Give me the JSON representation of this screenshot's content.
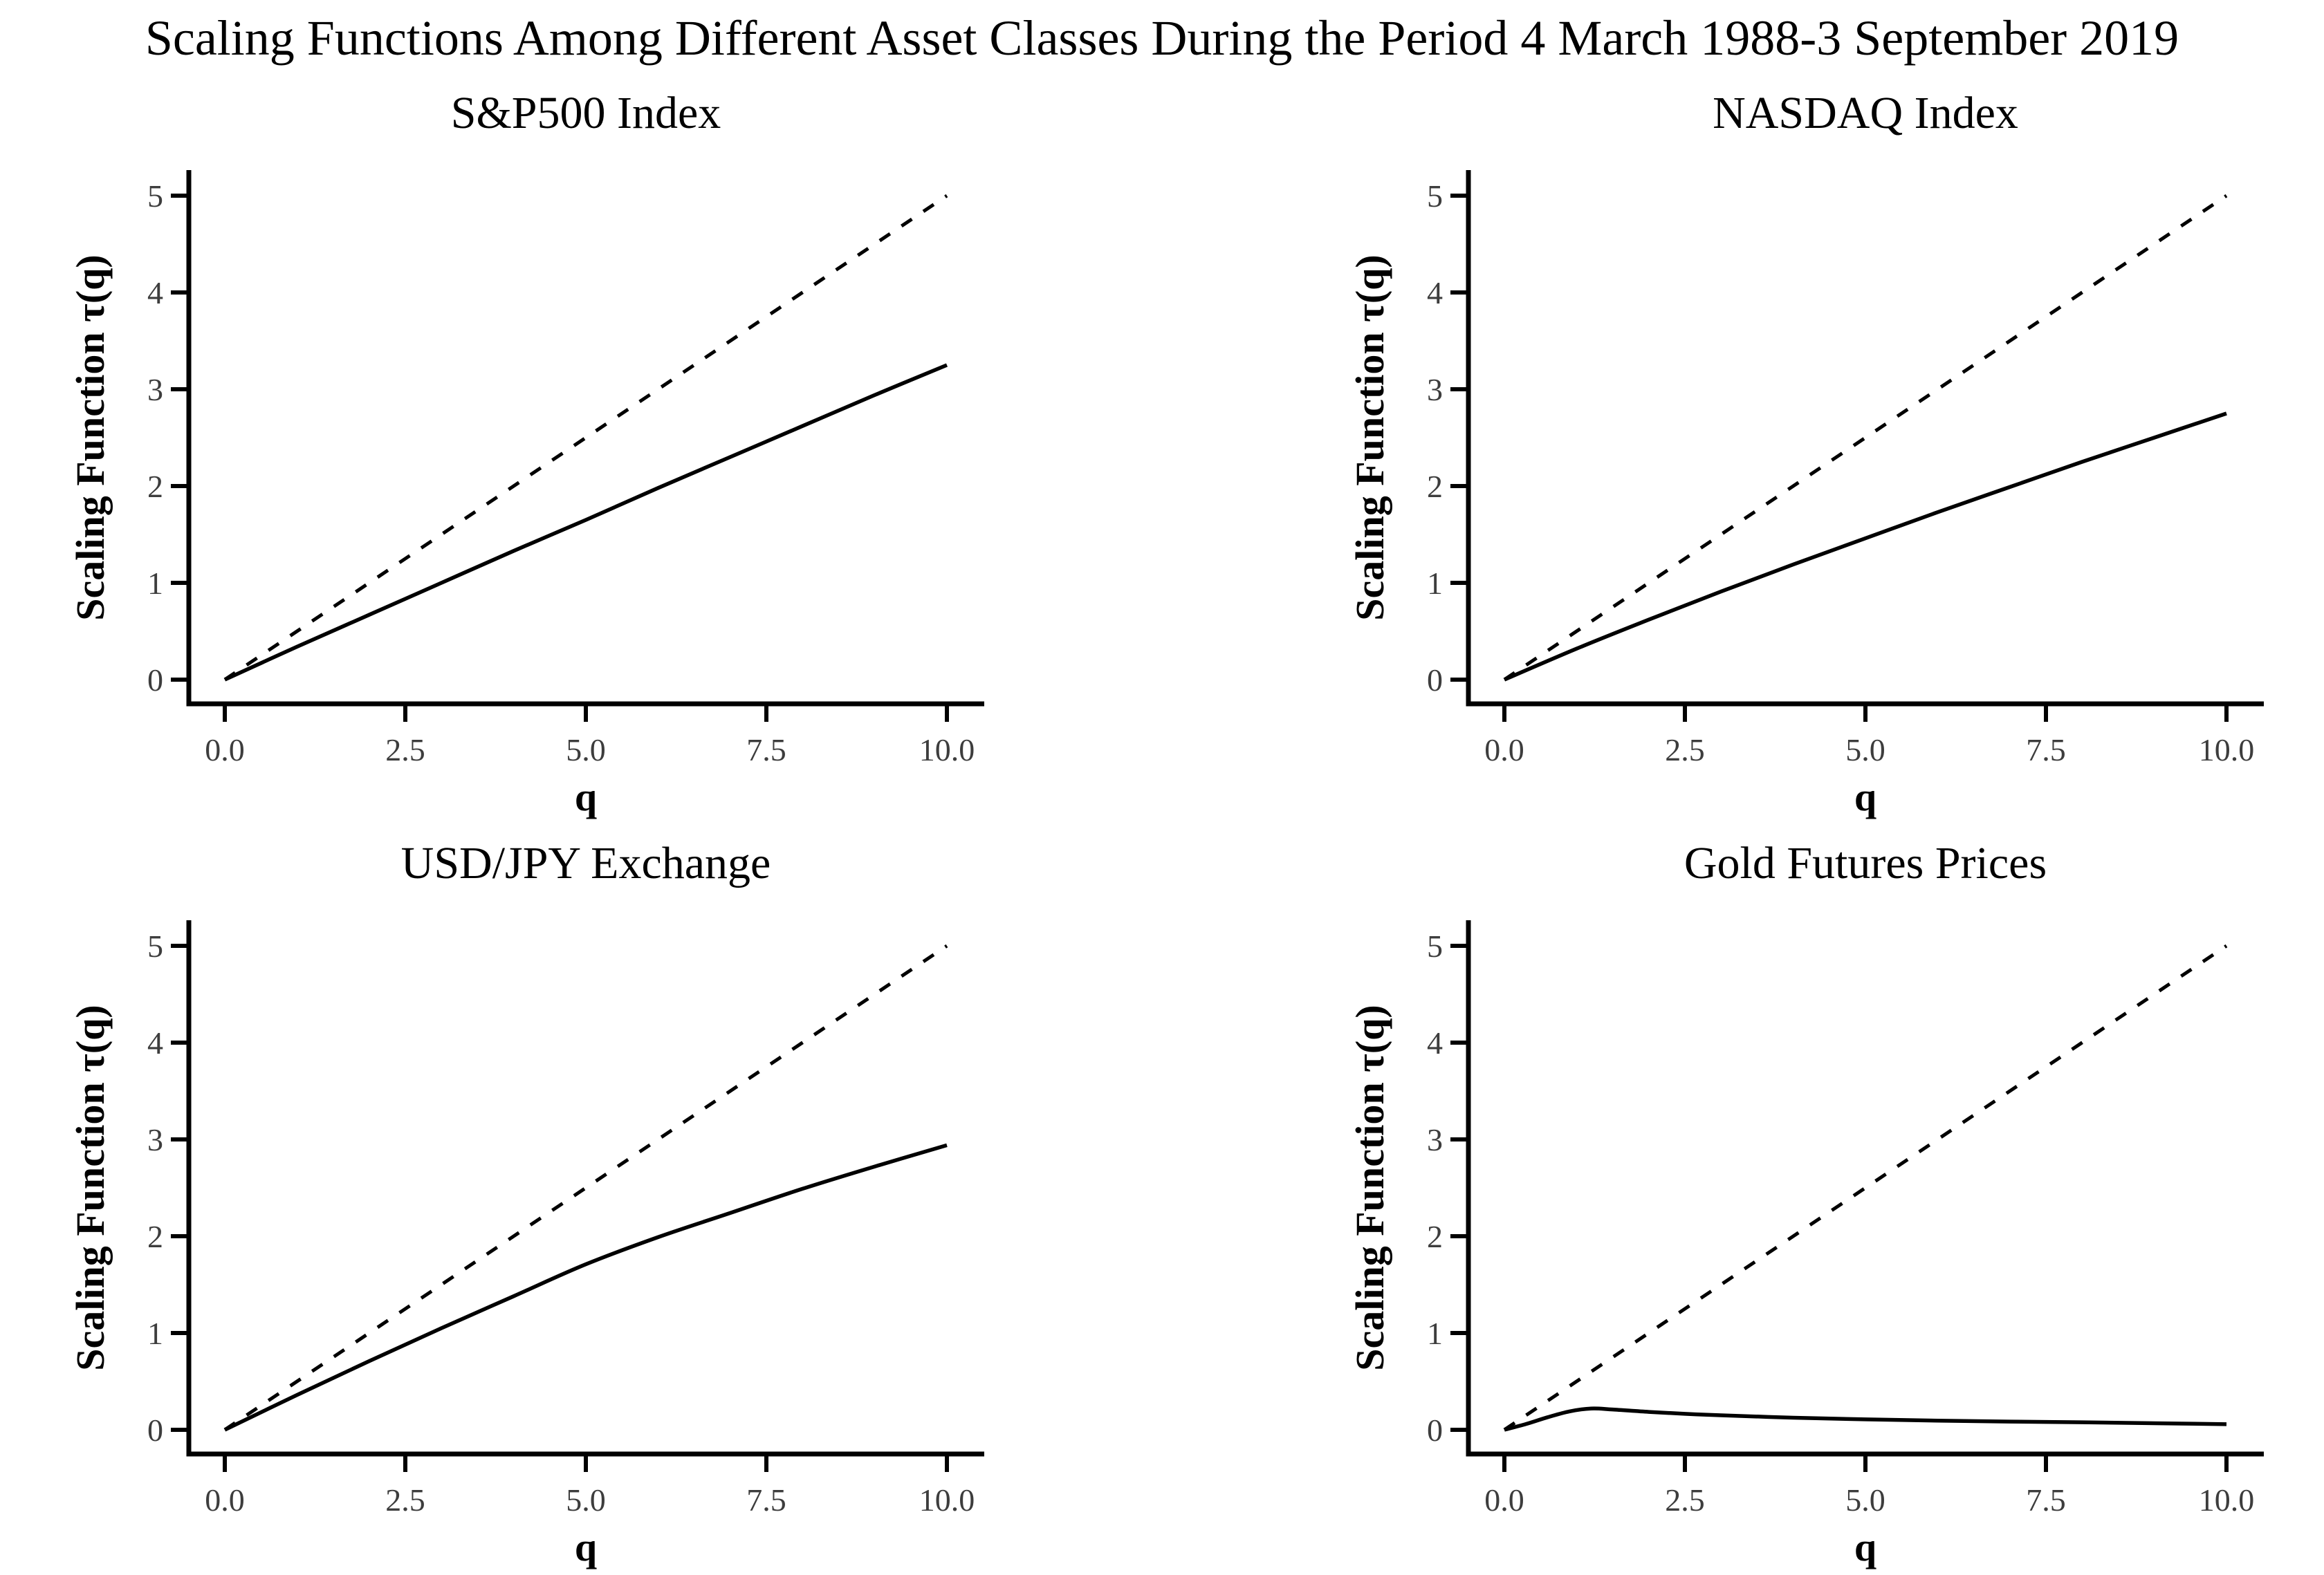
{
  "figure": {
    "title": "Scaling Functions Among Different Asset Classes During the Period 4 March 1988-3 September 2019",
    "background_color": "#ffffff",
    "line_color": "#000000",
    "tick_label_color": "#3d3d3d"
  },
  "chart_data": [
    {
      "type": "line",
      "title": "S&P500 Index",
      "xlabel": "q",
      "ylabel": "Scaling Function τ(q)",
      "xlim": [
        0,
        10
      ],
      "ylim": [
        0,
        5
      ],
      "grid": false,
      "legend": "none",
      "xtick_values": [
        0,
        2.5,
        5,
        7.5,
        10
      ],
      "xtick_labels": [
        "0.0",
        "2.5",
        "5.0",
        "7.5",
        "10.0"
      ],
      "ytick_values": [
        0,
        1,
        2,
        3,
        4,
        5
      ],
      "ytick_labels": [
        "0",
        "1",
        "2",
        "3",
        "4",
        "5"
      ],
      "series": [
        {
          "name": "dashed-reference-line",
          "style": "dashed",
          "x": [
            0,
            10
          ],
          "y": [
            0,
            5
          ]
        },
        {
          "name": "solid-scaling-function",
          "style": "solid",
          "x": [
            0,
            1,
            2,
            3,
            4,
            5,
            6,
            7,
            8,
            9,
            10
          ],
          "y": [
            0,
            0.34,
            0.67,
            1.0,
            1.33,
            1.65,
            1.98,
            2.3,
            2.62,
            2.94,
            3.25
          ]
        }
      ]
    },
    {
      "type": "line",
      "title": "NASDAQ Index",
      "xlabel": "q",
      "ylabel": "Scaling Function τ(q)",
      "xlim": [
        0,
        10
      ],
      "ylim": [
        0,
        5
      ],
      "grid": false,
      "legend": "none",
      "xtick_values": [
        0,
        2.5,
        5,
        7.5,
        10
      ],
      "xtick_labels": [
        "0.0",
        "2.5",
        "5.0",
        "7.5",
        "10.0"
      ],
      "ytick_values": [
        0,
        1,
        2,
        3,
        4,
        5
      ],
      "ytick_labels": [
        "0",
        "1",
        "2",
        "3",
        "4",
        "5"
      ],
      "series": [
        {
          "name": "dashed-reference-line",
          "style": "dashed",
          "x": [
            0,
            10
          ],
          "y": [
            0,
            5
          ]
        },
        {
          "name": "solid-scaling-function",
          "style": "solid",
          "x": [
            0,
            1,
            2,
            3,
            4,
            5,
            6,
            7,
            8,
            9,
            10
          ],
          "y": [
            0,
            0.32,
            0.62,
            0.91,
            1.19,
            1.46,
            1.73,
            1.99,
            2.25,
            2.5,
            2.75
          ]
        }
      ]
    },
    {
      "type": "line",
      "title": "USD/JPY Exchange",
      "xlabel": "q",
      "ylabel": "Scaling Function τ(q)",
      "xlim": [
        0,
        10
      ],
      "ylim": [
        0,
        5
      ],
      "grid": false,
      "legend": "none",
      "xtick_values": [
        0,
        2.5,
        5,
        7.5,
        10
      ],
      "xtick_labels": [
        "0.0",
        "2.5",
        "5.0",
        "7.5",
        "10.0"
      ],
      "ytick_values": [
        0,
        1,
        2,
        3,
        4,
        5
      ],
      "ytick_labels": [
        "0",
        "1",
        "2",
        "3",
        "4",
        "5"
      ],
      "series": [
        {
          "name": "dashed-reference-line",
          "style": "dashed",
          "x": [
            0,
            10
          ],
          "y": [
            0,
            5
          ]
        },
        {
          "name": "solid-scaling-function",
          "style": "solid",
          "x": [
            0,
            1,
            2,
            3,
            4,
            5,
            6,
            7,
            8,
            9,
            10
          ],
          "y": [
            0,
            0.36,
            0.71,
            1.05,
            1.38,
            1.71,
            1.99,
            2.24,
            2.49,
            2.72,
            2.94
          ]
        }
      ]
    },
    {
      "type": "line",
      "title": "Gold Futures Prices",
      "xlabel": "q",
      "ylabel": "Scaling Function τ(q)",
      "xlim": [
        0,
        10
      ],
      "ylim": [
        0,
        5
      ],
      "grid": false,
      "legend": "none",
      "xtick_values": [
        0,
        2.5,
        5,
        7.5,
        10
      ],
      "xtick_labels": [
        "0.0",
        "2.5",
        "5.0",
        "7.5",
        "10.0"
      ],
      "ytick_values": [
        0,
        1,
        2,
        3,
        4,
        5
      ],
      "ytick_labels": [
        "0",
        "1",
        "2",
        "3",
        "4",
        "5"
      ],
      "series": [
        {
          "name": "dashed-reference-line",
          "style": "dashed",
          "x": [
            0,
            10
          ],
          "y": [
            0,
            5
          ]
        },
        {
          "name": "solid-scaling-function",
          "style": "solid",
          "x": [
            0,
            0.3,
            0.6,
            0.9,
            1.2,
            1.5,
            2,
            2.5,
            3,
            4,
            5,
            6,
            7,
            8,
            9,
            10
          ],
          "y": [
            0,
            0.06,
            0.13,
            0.19,
            0.22,
            0.21,
            0.185,
            0.165,
            0.15,
            0.125,
            0.108,
            0.095,
            0.085,
            0.078,
            0.068,
            0.058
          ]
        }
      ]
    }
  ]
}
